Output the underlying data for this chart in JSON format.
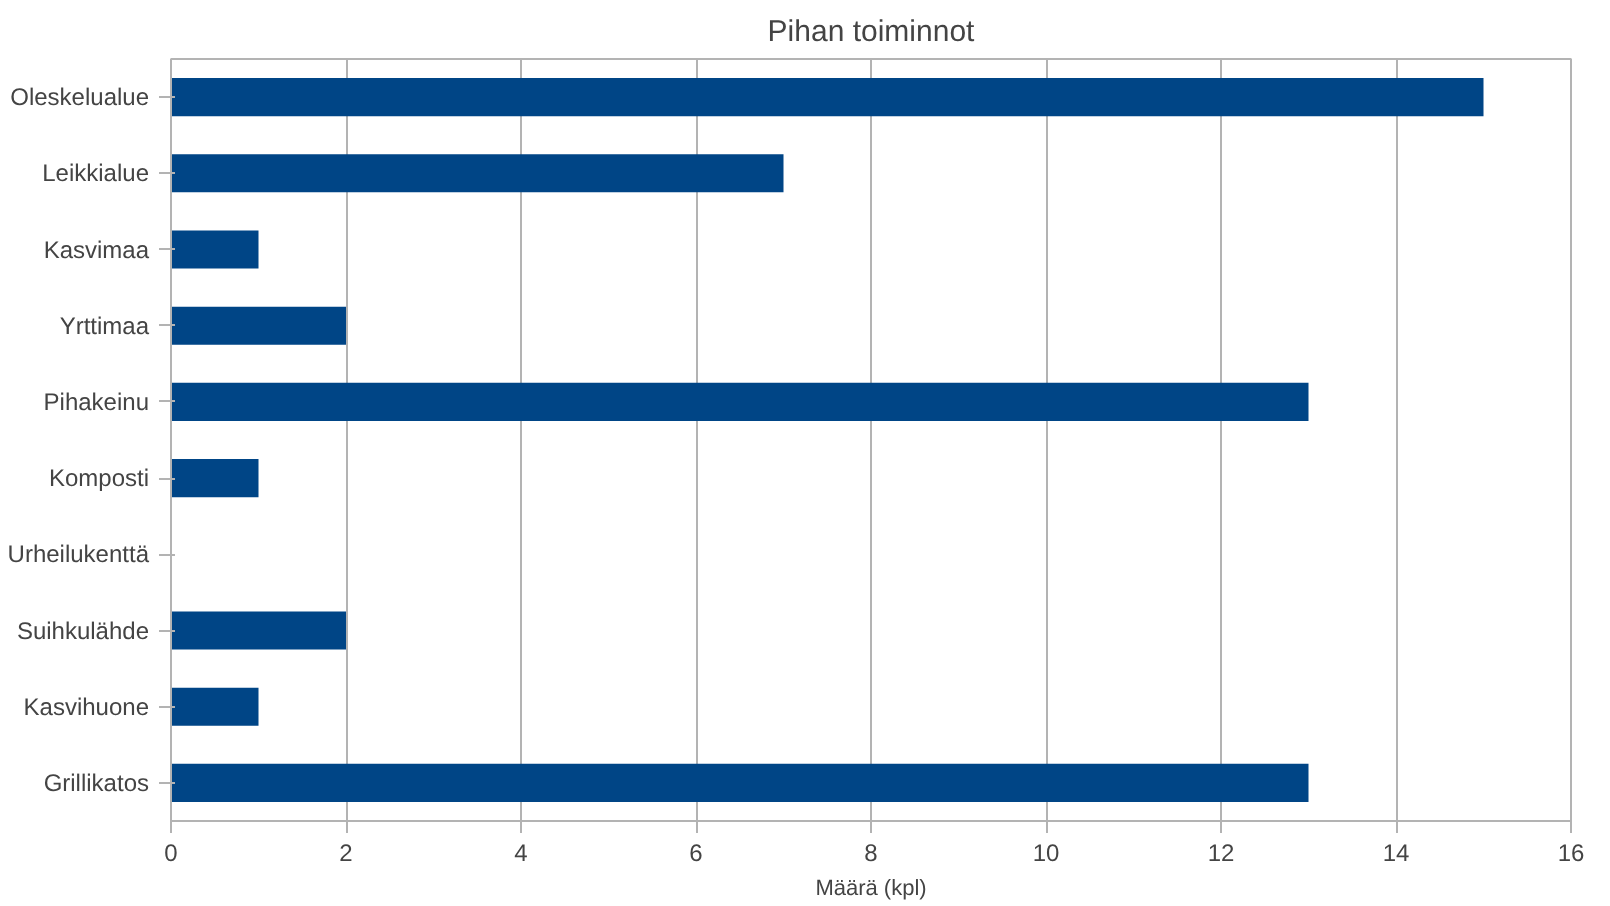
{
  "chart_data": {
    "type": "bar",
    "orientation": "horizontal",
    "title": "Pihan toiminnot",
    "xlabel": "Määrä (kpl)",
    "categories": [
      "Oleskelualue",
      "Leikkialue",
      "Kasvimaa",
      "Yrttimaa",
      "Pihakeinu",
      "Komposti",
      "Urheilukenttä",
      "Suihkulähde",
      "Kasvihuone",
      "Grillikatos"
    ],
    "values": [
      15,
      7,
      1,
      2,
      13,
      1,
      0,
      2,
      1,
      13
    ],
    "color": "#004586",
    "xlim": [
      0,
      16
    ],
    "xticks": [
      0,
      2,
      4,
      6,
      8,
      10,
      12,
      14,
      16
    ],
    "grid": "x"
  }
}
